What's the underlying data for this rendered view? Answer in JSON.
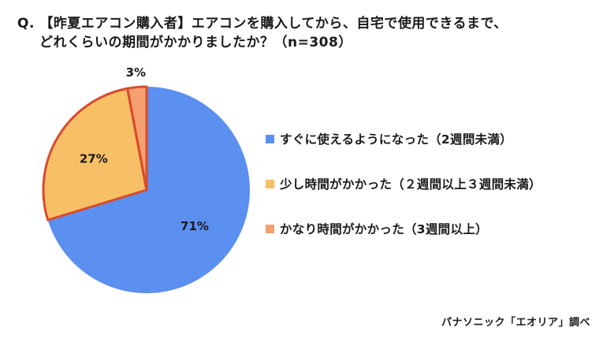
{
  "title_line1": "Q. 【昨夏エアコン購入者】エアコンを購入してから、自宅で使用できるまで、",
  "title_line2": "どれくらいの期間がかかりましたか？（n=308）",
  "source": "パナソニック「エオリア」調べ",
  "chart_data": {
    "type": "pie",
    "title": "Q. 【昨夏エアコン購入者】エアコンを購入してから、自宅で使用できるまで、どれくらいの期間がかかりましたか？（n=308）",
    "start": "12 o'clock",
    "direction": "clockwise",
    "legend_position": "right",
    "slices": [
      {
        "label": "すぐに使えるようになった（2週間未満）",
        "value": 71,
        "value_label": "71%",
        "color": "#5b8ff0",
        "highlighted": false
      },
      {
        "label": "少し時間がかかった（２週間以上３週間未満）",
        "value": 27,
        "value_label": "27%",
        "color": "#f7bf66",
        "highlighted": true
      },
      {
        "label": "かなり時間がかかった（3週間以上）",
        "value": 3,
        "value_label": "3%",
        "color": "#f4a070",
        "highlighted": true
      }
    ],
    "highlight_stroke_color": "#d94a2b"
  }
}
